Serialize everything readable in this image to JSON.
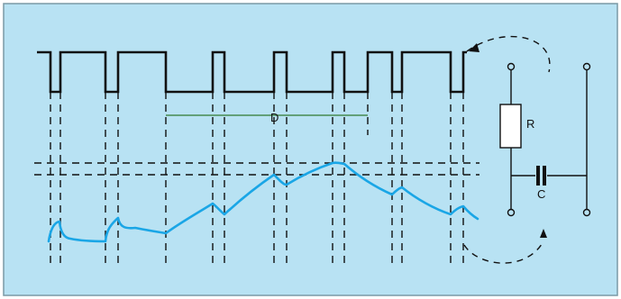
{
  "diagram": {
    "labels": {
      "interval": "D",
      "resistor": "R",
      "capacitor": "C"
    },
    "colors": {
      "background": "#b8e2f3",
      "border": "#7a9aa6",
      "square_wave": "#111111",
      "dashed_lines": "#111111",
      "response_curve": "#1aa6e6",
      "circuit": "#111111",
      "measure_line": "#2f7a2f"
    },
    "elements": {
      "square_wave": "pulse-train",
      "response_curve": "rc-voltage-curve",
      "circuit": "rc-circuit",
      "arrow_icon": "curved-arrow-icon"
    }
  }
}
